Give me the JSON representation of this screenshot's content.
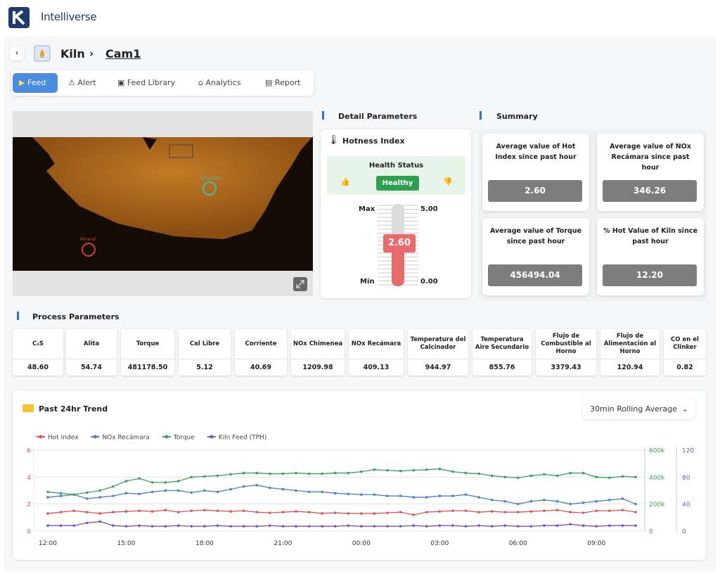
{
  "brand": "Intelliverse",
  "breadcrumb": {
    "parent": "Kiln",
    "current": "Cam1"
  },
  "tabs": [
    "Feed",
    "Alert",
    "Feed Library",
    "Analytics",
    "Report"
  ],
  "feed": {
    "labels": [
      "Refractario",
      "Mineral"
    ]
  },
  "detail": {
    "title": "Detail Parameters",
    "hotness_title": "Hotness Index",
    "health_title": "Health Status",
    "health_value": "Healthy",
    "max_label": "Max",
    "min_label": "Min",
    "max_value": "5.00",
    "min_value": "0.00",
    "value": "2.60"
  },
  "summary": {
    "title": "Summary",
    "cards": [
      {
        "label": "Average value of Hot Index since past hour",
        "value": "2.60"
      },
      {
        "label": "Average value of NOx Recámara since past hour",
        "value": "346.26"
      },
      {
        "label": "Average value of Torque since past hour",
        "value": "456494.04"
      },
      {
        "label": "% Hot Value of Kiln since past hour",
        "value": "12.20"
      }
    ]
  },
  "process": {
    "title": "Process Parameters",
    "items": [
      {
        "label": "C₃S",
        "value": "48.60"
      },
      {
        "label": "Alita",
        "value": "54.74"
      },
      {
        "label": "Torque",
        "value": "481178.50"
      },
      {
        "label": "Cal Libre",
        "value": "5.12"
      },
      {
        "label": "Corriente",
        "value": "40.69"
      },
      {
        "label": "NOx Chimenea",
        "value": "1209.98"
      },
      {
        "label": "NOx Recámara",
        "value": "409.13"
      },
      {
        "label": "Temperatura del Calcinador",
        "value": "944.97"
      },
      {
        "label": "Temperatura Aire Secundario",
        "value": "855.76"
      },
      {
        "label": "Flujo de Combustible al Horno",
        "value": "3379.43"
      },
      {
        "label": "Flujo de Alimentación al Horno",
        "value": "120.94"
      },
      {
        "label": "CO en el Clinker",
        "value": "0.82"
      }
    ]
  },
  "trend": {
    "title": "Past 24hr Trend",
    "dropdown": "30min Rolling Average"
  },
  "chart_data": {
    "type": "line",
    "grid": true,
    "categories": [
      "12:00",
      null,
      null,
      null,
      null,
      null,
      "15:00",
      null,
      null,
      null,
      null,
      null,
      "18:00",
      null,
      null,
      null,
      null,
      null,
      "21:00",
      null,
      null,
      null,
      null,
      null,
      "00:00",
      null,
      null,
      null,
      null,
      null,
      "03:00",
      null,
      null,
      null,
      null,
      null,
      "06:00",
      null,
      null,
      null,
      null,
      null,
      "09:00",
      null,
      null,
      null
    ],
    "ylim": [
      0,
      6
    ],
    "yticks": [
      0,
      2,
      4,
      6
    ],
    "y2lim": [
      0,
      600000
    ],
    "y2ticks": [
      0,
      {
        "value": 200000,
        "label": "200k"
      },
      {
        "value": 400000,
        "label": "400k"
      },
      {
        "value": 600000,
        "label": "600k"
      }
    ],
    "y3lim": [
      0,
      120
    ],
    "y3ticks": [
      0,
      40,
      80,
      120
    ],
    "series": [
      {
        "name": "Hot Index",
        "color": "#e05353",
        "axis": "y",
        "values": [
          1.3,
          1.4,
          1.5,
          1.4,
          1.3,
          1.4,
          1.45,
          1.5,
          1.45,
          1.55,
          1.4,
          1.5,
          1.55,
          1.5,
          1.45,
          1.5,
          1.4,
          1.35,
          1.4,
          1.45,
          1.4,
          1.3,
          1.35,
          1.3,
          1.3,
          1.3,
          1.35,
          1.4,
          1.2,
          1.4,
          1.45,
          1.5,
          1.5,
          1.4,
          1.45,
          1.4,
          1.4,
          1.45,
          1.5,
          1.55,
          1.4,
          1.35,
          1.5,
          1.5,
          1.55,
          1.4
        ]
      },
      {
        "name": "NOx Recámara",
        "color": "#4a7fd6",
        "axis": "y",
        "values": [
          2.5,
          2.6,
          2.7,
          2.4,
          2.5,
          2.6,
          2.8,
          2.75,
          2.9,
          3.0,
          3.0,
          2.85,
          3.0,
          2.9,
          3.1,
          3.3,
          3.4,
          3.2,
          3.1,
          3.0,
          2.9,
          2.9,
          2.8,
          2.75,
          2.7,
          2.7,
          2.6,
          2.6,
          2.5,
          2.5,
          2.6,
          2.6,
          2.7,
          2.5,
          2.3,
          2.2,
          2.0,
          2.2,
          2.3,
          2.2,
          2.0,
          2.1,
          2.2,
          2.3,
          2.4,
          2.0
        ]
      },
      {
        "name": "Torque",
        "color": "#3aa35a",
        "axis": "y2",
        "values": [
          290000,
          280000,
          270000,
          285000,
          300000,
          330000,
          370000,
          390000,
          360000,
          360000,
          370000,
          400000,
          405000,
          410000,
          420000,
          430000,
          430000,
          425000,
          425000,
          430000,
          425000,
          425000,
          430000,
          430000,
          440000,
          455000,
          450000,
          445000,
          450000,
          455000,
          460000,
          440000,
          430000,
          425000,
          410000,
          400000,
          395000,
          410000,
          420000,
          410000,
          430000,
          430000,
          400000,
          395000,
          405000,
          400000
        ]
      },
      {
        "name": "Kiln Feed (TPH)",
        "color": "#7b52c9",
        "axis": "y3",
        "values": [
          8,
          8,
          8,
          12,
          14,
          8,
          7,
          8,
          7,
          7,
          8,
          7,
          7,
          8,
          7,
          7,
          7,
          8,
          7,
          7,
          7,
          7,
          7,
          8,
          7,
          7,
          7,
          7,
          8,
          7,
          8,
          8,
          7,
          8,
          7,
          8,
          7,
          7,
          8,
          8,
          10,
          8,
          7,
          8,
          8,
          8
        ]
      }
    ]
  }
}
